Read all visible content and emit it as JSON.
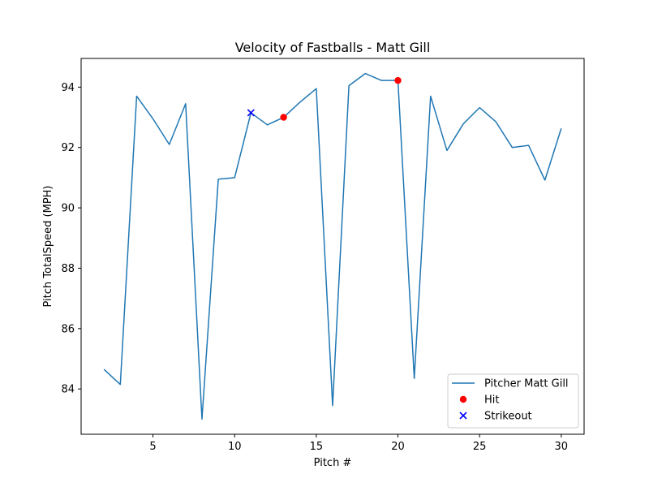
{
  "chart_data": {
    "type": "line",
    "title": "Velocity of Fastballs - Matt Gill",
    "xlabel": "Pitch #",
    "ylabel": "Pitch TotalSpeed (MPH)",
    "xlim": [
      0.6,
      31.4
    ],
    "ylim": [
      82.5,
      94.95
    ],
    "xticks": [
      5,
      10,
      15,
      20,
      25,
      30
    ],
    "yticks": [
      84,
      86,
      88,
      90,
      92,
      94
    ],
    "grid": false,
    "legend_position": "lower-right",
    "series": [
      {
        "name": "Pitcher Matt Gill",
        "kind": "line",
        "color": "#1f77b4",
        "x": [
          2,
          3,
          4,
          5,
          6,
          7,
          8,
          9,
          10,
          11,
          12,
          13,
          14,
          15,
          16,
          17,
          18,
          19,
          20,
          21,
          22,
          23,
          24,
          25,
          26,
          27,
          28,
          29,
          30
        ],
        "y": [
          84.65,
          84.15,
          93.7,
          92.95,
          92.1,
          93.45,
          83.0,
          90.95,
          91.0,
          93.15,
          92.75,
          93.0,
          93.5,
          93.95,
          83.45,
          94.05,
          94.45,
          94.22,
          94.22,
          84.35,
          93.7,
          91.9,
          92.78,
          93.32,
          92.85,
          92.0,
          92.07,
          90.92,
          92.63
        ]
      },
      {
        "name": "Hit",
        "kind": "scatter",
        "marker": "circle",
        "color": "#ff0000",
        "x": [
          13,
          20
        ],
        "y": [
          93.0,
          94.22
        ]
      },
      {
        "name": "Strikeout",
        "kind": "scatter",
        "marker": "x",
        "color": "#0000ff",
        "x": [
          11
        ],
        "y": [
          93.15
        ]
      }
    ]
  }
}
